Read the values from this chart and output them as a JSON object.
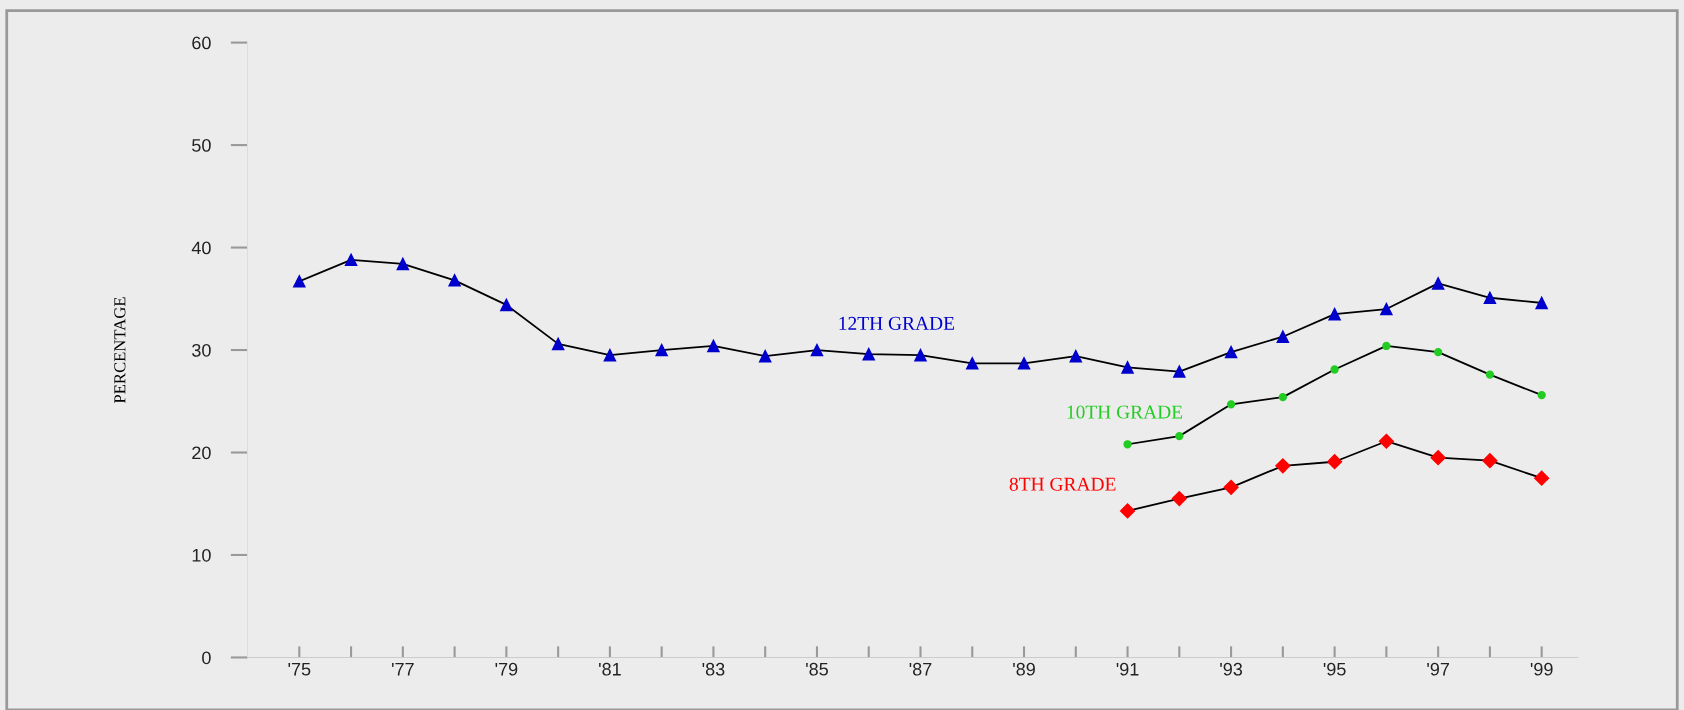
{
  "chart_data": {
    "type": "line",
    "ylabel": "PERCENTAGE",
    "x": [
      1975,
      1976,
      1977,
      1978,
      1979,
      1980,
      1981,
      1982,
      1983,
      1984,
      1985,
      1986,
      1987,
      1988,
      1989,
      1990,
      1991,
      1992,
      1993,
      1994,
      1995,
      1996,
      1997,
      1998,
      1999
    ],
    "xlim": [
      1974,
      1999.7
    ],
    "xticks": [
      {
        "value": 1975,
        "label": "'75"
      },
      {
        "value": 1976,
        "label": null
      },
      {
        "value": 1977,
        "label": "'77"
      },
      {
        "value": 1978,
        "label": null
      },
      {
        "value": 1979,
        "label": "'79"
      },
      {
        "value": 1980,
        "label": null
      },
      {
        "value": 1981,
        "label": "'81"
      },
      {
        "value": 1982,
        "label": null
      },
      {
        "value": 1983,
        "label": "'83"
      },
      {
        "value": 1984,
        "label": null
      },
      {
        "value": 1985,
        "label": "'85"
      },
      {
        "value": 1986,
        "label": null
      },
      {
        "value": 1987,
        "label": "'87"
      },
      {
        "value": 1988,
        "label": null
      },
      {
        "value": 1989,
        "label": "'89"
      },
      {
        "value": 1990,
        "label": null
      },
      {
        "value": 1991,
        "label": "'91"
      },
      {
        "value": 1992,
        "label": null
      },
      {
        "value": 1993,
        "label": "'93"
      },
      {
        "value": 1994,
        "label": null
      },
      {
        "value": 1995,
        "label": "'95"
      },
      {
        "value": 1996,
        "label": null
      },
      {
        "value": 1997,
        "label": "'97"
      },
      {
        "value": 1998,
        "label": null
      },
      {
        "value": 1999,
        "label": "'99"
      }
    ],
    "ylim": [
      0,
      60
    ],
    "yticks": [
      0,
      10,
      20,
      30,
      40,
      50,
      60
    ],
    "grid": false,
    "legend": false,
    "series": [
      {
        "name": "12TH GRADE",
        "color": "#0000cc",
        "marker": "triangle",
        "values": [
          36.7,
          38.8,
          38.4,
          36.8,
          34.4,
          30.6,
          29.5,
          30.0,
          30.4,
          29.4,
          30.0,
          29.6,
          29.5,
          28.7,
          28.7,
          29.4,
          28.3,
          27.9,
          29.8,
          31.3,
          33.5,
          34.0,
          36.5,
          35.1,
          34.6
        ]
      },
      {
        "name": "10TH GRADE",
        "color": "#22cc22",
        "marker": "circle",
        "values": [
          null,
          null,
          null,
          null,
          null,
          null,
          null,
          null,
          null,
          null,
          null,
          null,
          null,
          null,
          null,
          null,
          20.8,
          21.6,
          24.7,
          25.4,
          28.1,
          30.4,
          29.8,
          27.6,
          25.6
        ]
      },
      {
        "name": "8TH GRADE",
        "color": "#ff0000",
        "marker": "diamond",
        "values": [
          null,
          null,
          null,
          null,
          null,
          null,
          null,
          null,
          null,
          null,
          null,
          null,
          null,
          null,
          null,
          null,
          14.3,
          15.5,
          16.6,
          18.7,
          19.1,
          21.1,
          19.5,
          19.2,
          17.5
        ]
      }
    ]
  }
}
